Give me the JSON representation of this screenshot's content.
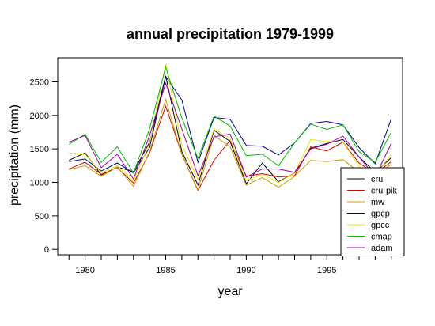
{
  "chart_data": {
    "type": "line",
    "title": "annual precipitation 1979-1999",
    "xlabel": "year",
    "ylabel": "precipitation (mm)",
    "xlim": [
      1978.3,
      1999.7
    ],
    "ylim": [
      -80,
      2860
    ],
    "x_ticks": [
      1980,
      1985,
      1990,
      1995
    ],
    "y_ticks": [
      0,
      500,
      1000,
      1500,
      2000,
      2500
    ],
    "legend_position": "bottom-right",
    "grid": false,
    "x": [
      1979,
      1980,
      1981,
      1982,
      1983,
      1984,
      1985,
      1986,
      1987,
      1988,
      1989,
      1990,
      1991,
      1992,
      1993,
      1994,
      1995,
      1996,
      1997,
      1998,
      1999
    ],
    "series": [
      {
        "name": "cru",
        "color": "#000000",
        "values": [
          1330,
          1440,
          1110,
          1230,
          1160,
          1600,
          2590,
          1460,
          960,
          1780,
          1610,
          980,
          1290,
          1010,
          1140,
          1510,
          1580,
          1640,
          1380,
          1150,
          1370
        ]
      },
      {
        "name": "cru-pik",
        "color": "#dd0000",
        "values": [
          1200,
          1300,
          1120,
          1220,
          990,
          1440,
          2140,
          1420,
          880,
          1330,
          1630,
          1090,
          1130,
          1080,
          1100,
          1530,
          1470,
          1600,
          1290,
          1130,
          1310
        ]
      },
      {
        "name": "mw",
        "color": "#c8a000",
        "values": [
          1190,
          1250,
          1090,
          1230,
          940,
          1460,
          2240,
          1420,
          890,
          1700,
          1530,
          960,
          1070,
          930,
          1090,
          1330,
          1310,
          1340,
          1150,
          1100,
          1270
        ]
      },
      {
        "name": "gpcp",
        "color": "#00008b",
        "values": [
          1310,
          1350,
          1170,
          1290,
          1140,
          1520,
          2580,
          2230,
          1300,
          1970,
          1940,
          1550,
          1540,
          1410,
          1590,
          1880,
          1910,
          1860,
          1520,
          1280,
          1950
        ]
      },
      {
        "name": "gpcc",
        "color": "#e8e800",
        "values": [
          1440,
          1420,
          1140,
          1250,
          1020,
          1580,
          2770,
          1560,
          1040,
          1800,
          1650,
          1030,
          1120,
          1000,
          1140,
          1640,
          1610,
          1600,
          1240,
          1100,
          1420
        ]
      },
      {
        "name": "cmap",
        "color": "#00c000",
        "values": [
          1570,
          1720,
          1300,
          1530,
          1140,
          1800,
          2720,
          1960,
          1360,
          1990,
          1840,
          1400,
          1420,
          1250,
          1590,
          1870,
          1790,
          1860,
          1460,
          1300,
          1750
        ]
      },
      {
        "name": "adam",
        "color": "#9a00b0",
        "values": [
          1600,
          1700,
          1220,
          1420,
          1050,
          1700,
          2480,
          1800,
          1100,
          1680,
          1720,
          1080,
          1200,
          1200,
          1150,
          1500,
          1570,
          1690,
          1380,
          1090,
          1580
        ]
      }
    ]
  }
}
